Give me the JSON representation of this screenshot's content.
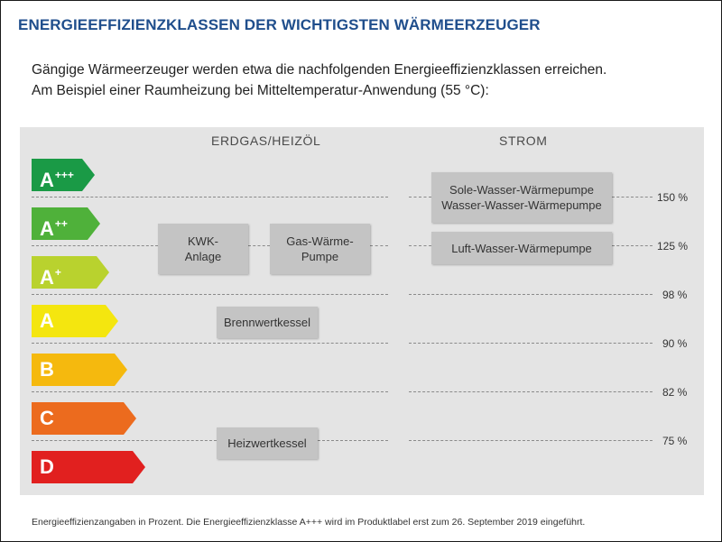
{
  "title": "ENERGIEEFFIZIENZKLASSEN DER WICHTIGSTEN WÄRMEERZEUGER",
  "intro_line1": "Gängige Wärmeerzeuger werden etwa die nachfolgenden Energieeffizienzklassen erreichen.",
  "intro_line2": "Am Beispiel einer Raumheizung bei Mitteltemperatur-Anwendung (55 °C):",
  "columns": {
    "left": "ERDGAS/HEIZÖL",
    "right": "STROM"
  },
  "classes": [
    {
      "letter": "A",
      "sup": "+++",
      "color": "#1a9a46"
    },
    {
      "letter": "A",
      "sup": "++",
      "color": "#4fb13a"
    },
    {
      "letter": "A",
      "sup": "+",
      "color": "#b9d22e"
    },
    {
      "letter": "A",
      "sup": "",
      "color": "#f4e60f"
    },
    {
      "letter": "B",
      "sup": "",
      "color": "#f5b90e"
    },
    {
      "letter": "C",
      "sup": "",
      "color": "#ec6b1e"
    },
    {
      "letter": "D",
      "sup": "",
      "color": "#e1201f"
    }
  ],
  "thresholds": [
    "150 %",
    "125 %",
    "98 %",
    "90 %",
    "82 %",
    "75 %"
  ],
  "boxes": {
    "kwk": "KWK-\nAnlage",
    "gas_wp": "Gas-Wärme-\nPumpe",
    "brennwert": "Brennwertkessel",
    "heizwert": "Heizwertkessel",
    "sole_wp": "Sole-Wasser-Wärmepumpe\nWasser-Wasser-Wärmepumpe",
    "luft_wp": "Luft-Wasser-Wärmepumpe"
  },
  "footnote": "Energieeffizienzangaben in Prozent. Die Energieeffizienzklasse A+++ wird im Produktlabel erst zum 26. September 2019 eingeführt."
}
